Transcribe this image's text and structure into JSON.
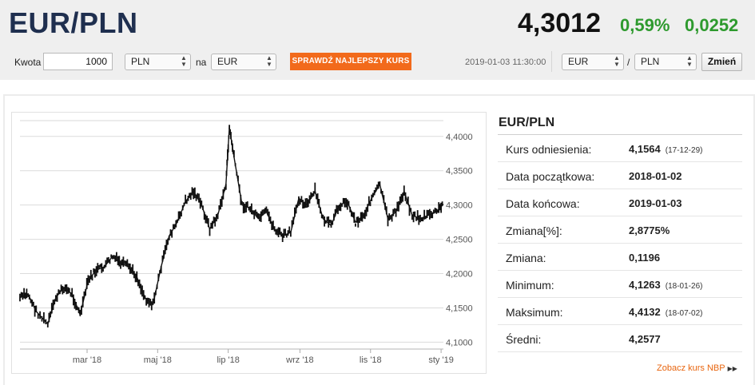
{
  "header": {
    "pair": "EUR/PLN",
    "rate": "4,3012",
    "change_pct": "0,59%",
    "change_abs": "0,0252"
  },
  "converter": {
    "amount_label": "Kwota",
    "amount_value": "1000",
    "from_currency": "PLN",
    "to_label": "na",
    "to_currency": "EUR",
    "best_rate_button": "SPRAWDŹ NAJLEPSZY KURS",
    "timestamp": "2019-01-03 11:30:00",
    "pair_base": "EUR",
    "pair_separator": "/",
    "pair_quote": "PLN",
    "change_button": "Zmień"
  },
  "info": {
    "title": "EUR/PLN",
    "rows": [
      {
        "label": "Kurs odniesienia:",
        "value": "4,1564",
        "date": "(17-12-29)"
      },
      {
        "label": "Data początkowa:",
        "value": "2018-01-02",
        "date": ""
      },
      {
        "label": "Data końcowa:",
        "value": "2019-01-03",
        "date": ""
      },
      {
        "label": "Zmiana[%]:",
        "value": "2,8775%",
        "date": ""
      },
      {
        "label": "Zmiana:",
        "value": "0,1196",
        "date": ""
      },
      {
        "label": "Minimum:",
        "value": "4,1263",
        "date": "(18-01-26)"
      },
      {
        "label": "Maksimum:",
        "value": "4,4132",
        "date": "(18-07-02)"
      },
      {
        "label": "Średni:",
        "value": "4,2577",
        "date": ""
      }
    ],
    "nbp_link": "Zobacz kurs NBP"
  },
  "chart_data": {
    "type": "line",
    "title": "",
    "xlabel": "",
    "ylabel": "",
    "ylim": [
      4.09,
      4.43
    ],
    "grid": true,
    "y_tick_labels": [
      "4,4000",
      "4,3500",
      "4,3000",
      "4,2500",
      "4,2000",
      "4,1500",
      "4,1000"
    ],
    "y_ticks": [
      4.4,
      4.35,
      4.3,
      4.25,
      4.2,
      4.15,
      4.1
    ],
    "x_tick_labels": [
      "mar '18",
      "maj '18",
      "lip '18",
      "wrz '18",
      "lis '18",
      "sty '19"
    ],
    "x_ticks": [
      "2018-03-01",
      "2018-05-01",
      "2018-07-01",
      "2018-09-01",
      "2018-11-01",
      "2019-01-01"
    ],
    "series": [
      {
        "x": [
          "2018-01-02",
          "2018-01-09",
          "2018-01-16",
          "2018-01-26",
          "2018-02-02",
          "2018-02-09",
          "2018-02-16",
          "2018-02-23",
          "2018-03-02",
          "2018-03-09",
          "2018-03-16",
          "2018-03-23",
          "2018-03-30",
          "2018-04-06",
          "2018-04-13",
          "2018-04-20",
          "2018-04-27",
          "2018-05-04",
          "2018-05-11",
          "2018-05-18",
          "2018-05-25",
          "2018-06-01",
          "2018-06-08",
          "2018-06-15",
          "2018-06-22",
          "2018-06-29",
          "2018-07-02",
          "2018-07-06",
          "2018-07-13",
          "2018-07-20",
          "2018-07-27",
          "2018-08-03",
          "2018-08-10",
          "2018-08-17",
          "2018-08-24",
          "2018-08-31",
          "2018-09-07",
          "2018-09-14",
          "2018-09-21",
          "2018-09-28",
          "2018-10-05",
          "2018-10-12",
          "2018-10-19",
          "2018-10-26",
          "2018-11-02",
          "2018-11-09",
          "2018-11-16",
          "2018-11-23",
          "2018-11-30",
          "2018-12-07",
          "2018-12-14",
          "2018-12-21",
          "2018-12-28",
          "2019-01-03"
        ],
        "y": [
          4.165,
          4.17,
          4.145,
          4.1263,
          4.165,
          4.18,
          4.17,
          4.14,
          4.19,
          4.205,
          4.21,
          4.225,
          4.215,
          4.21,
          4.195,
          4.165,
          4.155,
          4.21,
          4.255,
          4.275,
          4.305,
          4.32,
          4.3,
          4.265,
          4.285,
          4.33,
          4.4132,
          4.37,
          4.3,
          4.295,
          4.28,
          4.29,
          4.265,
          4.255,
          4.26,
          4.31,
          4.3,
          4.32,
          4.28,
          4.27,
          4.3,
          4.305,
          4.275,
          4.285,
          4.31,
          4.33,
          4.28,
          4.29,
          4.32,
          4.285,
          4.28,
          4.285,
          4.29,
          4.3012
        ]
      }
    ]
  }
}
